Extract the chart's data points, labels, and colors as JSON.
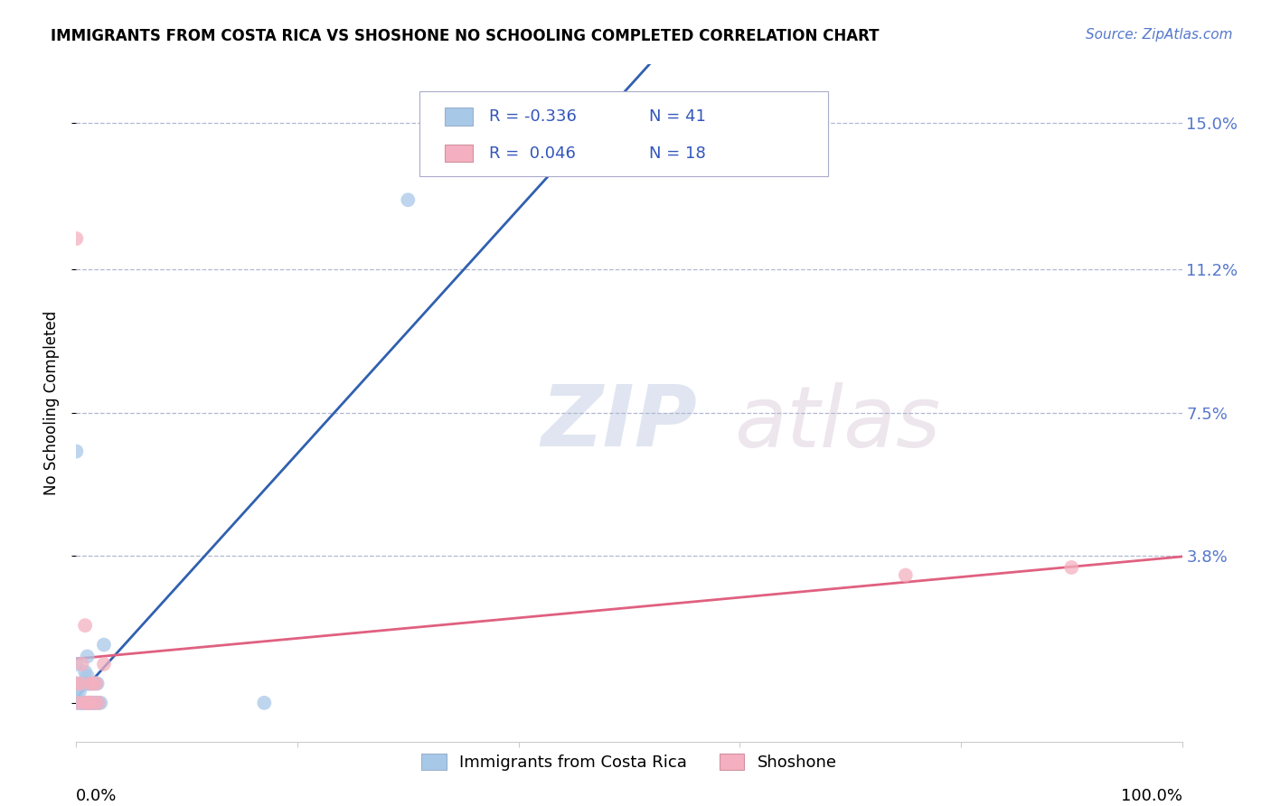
{
  "title": "IMMIGRANTS FROM COSTA RICA VS SHOSHONE NO SCHOOLING COMPLETED CORRELATION CHART",
  "source_text": "Source: ZipAtlas.com",
  "ylabel": "No Schooling Completed",
  "yticks": [
    0.0,
    0.038,
    0.075,
    0.112,
    0.15
  ],
  "ytick_labels": [
    "",
    "3.8%",
    "7.5%",
    "11.2%",
    "15.0%"
  ],
  "xmin": 0.0,
  "xmax": 1.0,
  "ymin": -0.01,
  "ymax": 0.165,
  "series1_label": "Immigrants from Costa Rica",
  "series1_color": "#a8c8e8",
  "series2_label": "Shoshone",
  "series2_color": "#f4b0c0",
  "line1_color": "#3060b0",
  "line2_color": "#e06080",
  "watermark_zip": "ZIP",
  "watermark_atlas": "atlas",
  "blue_scatter_x": [
    0.0,
    0.0,
    0.0,
    0.0,
    0.0,
    0.003,
    0.003,
    0.004,
    0.004,
    0.005,
    0.005,
    0.006,
    0.006,
    0.007,
    0.007,
    0.008,
    0.008,
    0.008,
    0.009,
    0.009,
    0.01,
    0.01,
    0.01,
    0.01,
    0.011,
    0.011,
    0.012,
    0.012,
    0.013,
    0.014,
    0.015,
    0.015,
    0.016,
    0.017,
    0.018,
    0.019,
    0.02,
    0.022,
    0.025,
    0.17,
    0.3
  ],
  "blue_scatter_y": [
    0.0,
    0.003,
    0.005,
    0.01,
    0.065,
    0.0,
    0.003,
    0.0,
    0.005,
    0.0,
    0.005,
    0.0,
    0.005,
    0.0,
    0.005,
    0.0,
    0.005,
    0.008,
    0.0,
    0.005,
    0.0,
    0.005,
    0.007,
    0.012,
    0.0,
    0.005,
    0.0,
    0.005,
    0.0,
    0.0,
    0.0,
    0.005,
    0.0,
    0.005,
    0.0,
    0.005,
    0.0,
    0.0,
    0.015,
    0.0,
    0.13
  ],
  "pink_scatter_x": [
    0.0,
    0.0,
    0.0,
    0.004,
    0.005,
    0.007,
    0.008,
    0.009,
    0.01,
    0.012,
    0.013,
    0.015,
    0.016,
    0.018,
    0.02,
    0.025,
    0.75,
    0.9
  ],
  "pink_scatter_y": [
    0.0,
    0.005,
    0.12,
    0.005,
    0.01,
    0.0,
    0.02,
    0.0,
    0.0,
    0.0,
    0.005,
    0.005,
    0.0,
    0.005,
    0.0,
    0.01,
    0.033,
    0.035
  ],
  "legend_R1": "R = -0.336",
  "legend_N1": "N = 41",
  "legend_R2": "R =  0.046",
  "legend_N2": "N = 18"
}
